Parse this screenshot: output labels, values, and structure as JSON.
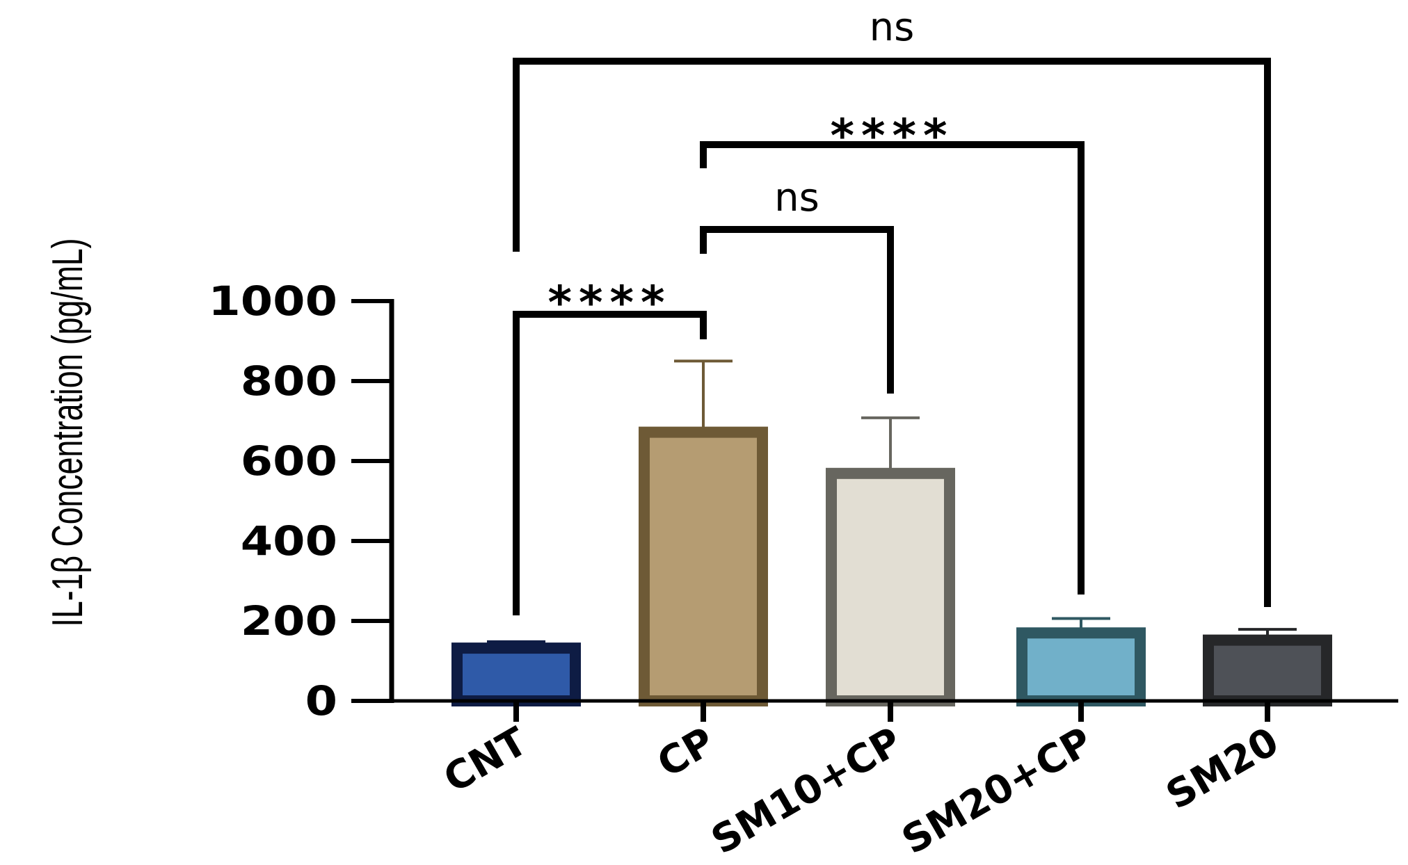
{
  "chart_data": {
    "type": "bar",
    "title": "",
    "xlabel": "",
    "ylabel": "IL-1β Concentration (pg/mL)",
    "ylim": [
      0,
      1000
    ],
    "yticks": [
      0,
      200,
      400,
      600,
      800,
      1000
    ],
    "ytick_labels": [
      "0",
      "200",
      "400",
      "600",
      "800",
      "1000"
    ],
    "categories": [
      "CNT",
      "CP",
      "SM10+CP",
      "SM20+CP",
      "SM20"
    ],
    "values": [
      132,
      672,
      569,
      170,
      152
    ],
    "errors": [
      16,
      178,
      139,
      36,
      27
    ],
    "bar_fill": [
      "#2f5aa8",
      "#b59c72",
      "#e2ded3",
      "#71b0c9",
      "#4e5157"
    ],
    "bar_edge": [
      "#0e1c44",
      "#6e5a36",
      "#67665f",
      "#2f5862",
      "#262729"
    ],
    "grid": false,
    "legend": "none",
    "comparisons": [
      {
        "from": "CNT",
        "to": "CP",
        "label": "****"
      },
      {
        "from": "CP",
        "to": "SM10+CP",
        "label": "ns"
      },
      {
        "from": "CP",
        "to": "SM20+CP",
        "label": "****"
      },
      {
        "from": "CNT",
        "to": "SM20",
        "label": "ns"
      }
    ]
  }
}
